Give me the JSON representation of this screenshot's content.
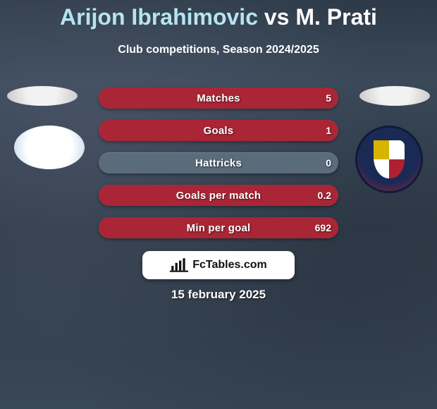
{
  "title": {
    "player1": "Arijon Ibrahimovic",
    "vs": "vs",
    "player2": "M. Prati",
    "player1_color": "#b6e4f0",
    "text_color": "#ffffff"
  },
  "subtitle": "Club competitions, Season 2024/2025",
  "colors": {
    "player1": "#9cd6e6",
    "player2": "#aa2636",
    "row_bg": "#5a6b7c",
    "bg": "#2f3b48"
  },
  "rows": [
    {
      "label": "Matches",
      "left": "",
      "right": "5",
      "left_ratio": 0.0,
      "right_ratio": 1.0
    },
    {
      "label": "Goals",
      "left": "",
      "right": "1",
      "left_ratio": 0.0,
      "right_ratio": 1.0
    },
    {
      "label": "Hattricks",
      "left": "",
      "right": "0",
      "left_ratio": 0.0,
      "right_ratio": 0.0
    },
    {
      "label": "Goals per match",
      "left": "",
      "right": "0.2",
      "left_ratio": 0.0,
      "right_ratio": 1.0
    },
    {
      "label": "Min per goal",
      "left": "",
      "right": "692",
      "left_ratio": 0.0,
      "right_ratio": 1.0
    }
  ],
  "brand": {
    "icon": "bar-chart-icon",
    "text": "FcTables.com"
  },
  "date": "15 february 2025",
  "crest": {
    "left": {
      "name": "lazio-crest",
      "label": ""
    },
    "right": {
      "name": "cagliari-crest",
      "label": "Cagliari"
    }
  }
}
